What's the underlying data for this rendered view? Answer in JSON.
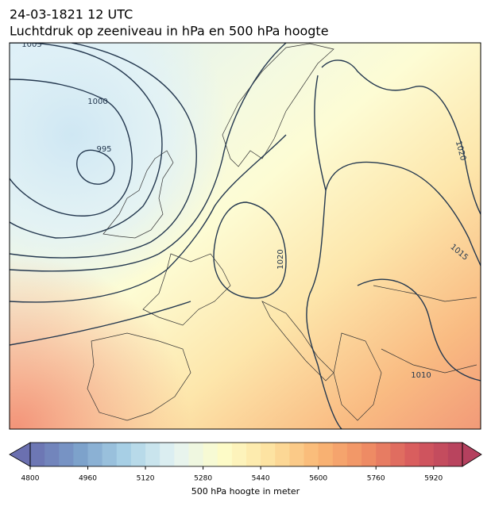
{
  "header": {
    "date": "24-03-1821 12 UTC",
    "title": "Luchtdruk op zeeniveau in hPa en 500 hPa hoogte"
  },
  "map": {
    "contour_labels": [
      "1005",
      "1000",
      "995",
      "1020",
      "1015",
      "1020",
      "1010"
    ]
  },
  "colorbar": {
    "label": "500 hPa hoogte in meter",
    "lim": [
      4800,
      6000
    ],
    "ticks": [
      4800,
      4960,
      5120,
      5280,
      5440,
      5600,
      5760,
      5920
    ],
    "colors": [
      "#6b70b0",
      "#7b9fca",
      "#a9d2e6",
      "#e4f3f3",
      "#fdfcc9",
      "#fde2a0",
      "#f9b775",
      "#ef8d64",
      "#d85b5e",
      "#b4405e"
    ]
  }
}
